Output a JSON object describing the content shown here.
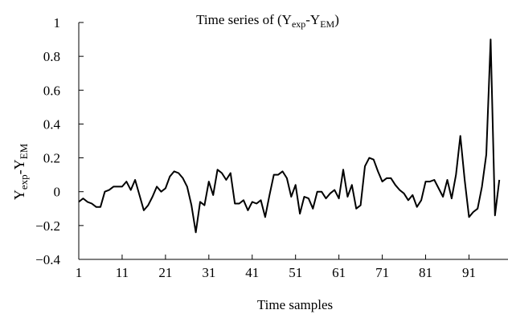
{
  "chart_data": {
    "type": "line",
    "title": {
      "prefix": "Time series of (Y",
      "sub1": "exp",
      "mid": "-Y",
      "sub2": "EM",
      "suffix": ")"
    },
    "ylabel": {
      "base1": "Y",
      "sub1": "exp",
      "mid": "-Y",
      "sub2": "EM"
    },
    "xlabel": "Time samples",
    "xlim": [
      1,
      100
    ],
    "ylim": [
      -0.4,
      1.0
    ],
    "xticks": [
      1,
      11,
      21,
      31,
      41,
      51,
      61,
      71,
      81,
      91
    ],
    "yticks": [
      {
        "v": 1,
        "label": "1"
      },
      {
        "v": 0.8,
        "label": "0.8"
      },
      {
        "v": 0.6,
        "label": "0.6"
      },
      {
        "v": 0.4,
        "label": "0.4"
      },
      {
        "v": 0.2,
        "label": "0.2"
      },
      {
        "v": 0,
        "label": "0"
      },
      {
        "v": -0.2,
        "label": "−0.2"
      },
      {
        "v": -0.4,
        "label": "−0.4"
      }
    ],
    "grid": false,
    "series": [
      {
        "color": "#000000",
        "x": [
          1,
          2,
          3,
          4,
          5,
          6,
          7,
          8,
          9,
          10,
          11,
          12,
          13,
          14,
          15,
          16,
          17,
          18,
          19,
          20,
          21,
          22,
          23,
          24,
          25,
          26,
          27,
          28,
          29,
          30,
          31,
          32,
          33,
          34,
          35,
          36,
          37,
          38,
          39,
          40,
          41,
          42,
          43,
          44,
          45,
          46,
          47,
          48,
          49,
          50,
          51,
          52,
          53,
          54,
          55,
          56,
          57,
          58,
          59,
          60,
          61,
          62,
          63,
          64,
          65,
          66,
          67,
          68,
          69,
          70,
          71,
          72,
          73,
          74,
          75,
          76,
          77,
          78,
          79,
          80,
          81,
          82,
          83,
          84,
          85,
          86,
          87,
          88,
          89,
          90,
          91,
          92,
          93,
          94,
          95,
          96,
          97,
          98
        ],
        "y": [
          -0.06,
          -0.04,
          -0.06,
          -0.07,
          -0.09,
          -0.09,
          0.0,
          0.01,
          0.03,
          0.03,
          0.03,
          0.06,
          0.01,
          0.07,
          -0.02,
          -0.11,
          -0.08,
          -0.03,
          0.03,
          0.0,
          0.02,
          0.09,
          0.12,
          0.11,
          0.08,
          0.03,
          -0.08,
          -0.24,
          -0.06,
          -0.08,
          0.06,
          -0.02,
          0.13,
          0.11,
          0.07,
          0.11,
          -0.07,
          -0.07,
          -0.05,
          -0.11,
          -0.06,
          -0.07,
          -0.05,
          -0.15,
          -0.02,
          0.1,
          0.1,
          0.12,
          0.08,
          -0.03,
          0.04,
          -0.13,
          -0.03,
          -0.04,
          -0.1,
          0.0,
          0.0,
          -0.04,
          -0.01,
          0.01,
          -0.04,
          0.13,
          -0.03,
          0.04,
          -0.1,
          -0.08,
          0.15,
          0.2,
          0.19,
          0.12,
          0.06,
          0.08,
          0.08,
          0.04,
          0.01,
          -0.01,
          -0.05,
          -0.02,
          -0.09,
          -0.05,
          0.06,
          0.06,
          0.07,
          0.02,
          -0.03,
          0.07,
          -0.04,
          0.1,
          0.33,
          0.07,
          -0.15,
          -0.12,
          -0.1,
          0.03,
          0.22,
          0.9,
          -0.14,
          0.07
        ]
      }
    ]
  }
}
